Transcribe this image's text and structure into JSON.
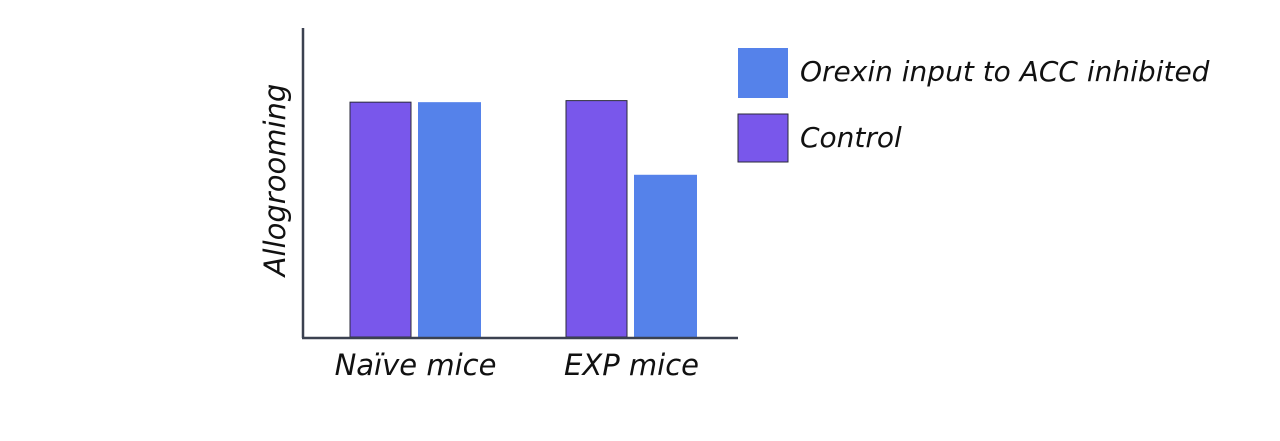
{
  "chart_data": {
    "type": "bar",
    "title": "",
    "xlabel": "",
    "ylabel": "Allogrooming",
    "categories": [
      "Naïve mice",
      "EXP mice"
    ],
    "series": [
      {
        "name": "Control",
        "color": "#7957EB",
        "values": [
          0.76,
          0.765
        ]
      },
      {
        "name": "Orexin input to ACC inhibited",
        "color": "#5582EA",
        "values": [
          0.76,
          0.525
        ]
      }
    ],
    "ylim": [
      0,
      1
    ],
    "grid": false,
    "legend_position": "top-right",
    "y_ticks_shown": false
  }
}
